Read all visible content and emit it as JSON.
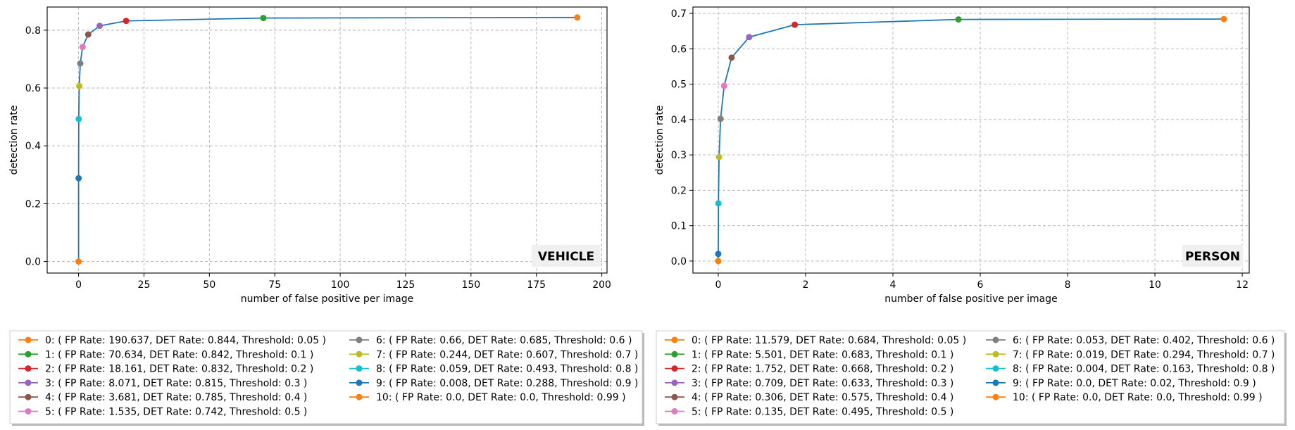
{
  "chart_data": [
    {
      "type": "line",
      "label": "VEHICLE",
      "xlabel": "number of false positive per image",
      "ylabel": "detection rate",
      "xlim": [
        -12,
        202
      ],
      "ylim": [
        -0.04,
        0.88
      ],
      "xticks": [
        0,
        25,
        50,
        75,
        100,
        125,
        150,
        175,
        200
      ],
      "yticks": [
        0.0,
        0.2,
        0.4,
        0.6,
        0.8
      ],
      "ytick_decimals": 1,
      "line_color": "#1f77b4",
      "grid": true,
      "legend_position": "below",
      "points": [
        {
          "fp": 190.637,
          "det": 0.844,
          "threshold": 0.05,
          "legend": "0: ( FP Rate: 190.637, DET Rate: 0.844, Threshold: 0.05 )"
        },
        {
          "fp": 70.634,
          "det": 0.842,
          "threshold": 0.1,
          "legend": "1: ( FP Rate: 70.634, DET Rate: 0.842, Threshold: 0.1 )"
        },
        {
          "fp": 18.161,
          "det": 0.832,
          "threshold": 0.2,
          "legend": "2: ( FP Rate: 18.161, DET Rate: 0.832, Threshold: 0.2 )"
        },
        {
          "fp": 8.071,
          "det": 0.815,
          "threshold": 0.3,
          "legend": "3: ( FP Rate: 8.071, DET Rate: 0.815, Threshold: 0.3 )"
        },
        {
          "fp": 3.681,
          "det": 0.785,
          "threshold": 0.4,
          "legend": "4: ( FP Rate: 3.681, DET Rate: 0.785, Threshold: 0.4 )"
        },
        {
          "fp": 1.535,
          "det": 0.742,
          "threshold": 0.5,
          "legend": "5: ( FP Rate: 1.535, DET Rate: 0.742, Threshold: 0.5 )"
        },
        {
          "fp": 0.66,
          "det": 0.685,
          "threshold": 0.6,
          "legend": "6: ( FP Rate: 0.66, DET Rate: 0.685, Threshold: 0.6 )"
        },
        {
          "fp": 0.244,
          "det": 0.607,
          "threshold": 0.7,
          "legend": "7: ( FP Rate: 0.244, DET Rate: 0.607, Threshold: 0.7 )"
        },
        {
          "fp": 0.059,
          "det": 0.493,
          "threshold": 0.8,
          "legend": "8: ( FP Rate: 0.059, DET Rate: 0.493, Threshold: 0.8 )"
        },
        {
          "fp": 0.008,
          "det": 0.288,
          "threshold": 0.9,
          "legend": "9: ( FP Rate: 0.008, DET Rate: 0.288, Threshold: 0.9 )"
        },
        {
          "fp": 0.0,
          "det": 0.0,
          "threshold": 0.99,
          "legend": "10: ( FP Rate: 0.0, DET Rate: 0.0, Threshold: 0.99 )"
        }
      ]
    },
    {
      "type": "line",
      "label": "PERSON",
      "xlabel": "number of false positive per image",
      "ylabel": "detection rate",
      "xlim": [
        -0.58,
        12.16
      ],
      "ylim": [
        -0.034,
        0.718
      ],
      "xticks": [
        0,
        2,
        4,
        6,
        8,
        10,
        12
      ],
      "yticks": [
        0.0,
        0.1,
        0.2,
        0.3,
        0.4,
        0.5,
        0.6,
        0.7
      ],
      "ytick_decimals": 1,
      "line_color": "#1f77b4",
      "grid": true,
      "legend_position": "below",
      "points": [
        {
          "fp": 11.579,
          "det": 0.684,
          "threshold": 0.05,
          "legend": "0: ( FP Rate: 11.579, DET Rate: 0.684, Threshold: 0.05 )"
        },
        {
          "fp": 5.501,
          "det": 0.683,
          "threshold": 0.1,
          "legend": "1: ( FP Rate: 5.501, DET Rate: 0.683, Threshold: 0.1 )"
        },
        {
          "fp": 1.752,
          "det": 0.668,
          "threshold": 0.2,
          "legend": "2: ( FP Rate: 1.752, DET Rate: 0.668, Threshold: 0.2 )"
        },
        {
          "fp": 0.709,
          "det": 0.633,
          "threshold": 0.3,
          "legend": "3: ( FP Rate: 0.709, DET Rate: 0.633, Threshold: 0.3 )"
        },
        {
          "fp": 0.306,
          "det": 0.575,
          "threshold": 0.4,
          "legend": "4: ( FP Rate: 0.306, DET Rate: 0.575, Threshold: 0.4 )"
        },
        {
          "fp": 0.135,
          "det": 0.495,
          "threshold": 0.5,
          "legend": "5: ( FP Rate: 0.135, DET Rate: 0.495, Threshold: 0.5 )"
        },
        {
          "fp": 0.053,
          "det": 0.402,
          "threshold": 0.6,
          "legend": "6: ( FP Rate: 0.053, DET Rate: 0.402, Threshold: 0.6 )"
        },
        {
          "fp": 0.019,
          "det": 0.294,
          "threshold": 0.7,
          "legend": "7: ( FP Rate: 0.019, DET Rate: 0.294, Threshold: 0.7 )"
        },
        {
          "fp": 0.004,
          "det": 0.163,
          "threshold": 0.8,
          "legend": "8: ( FP Rate: 0.004, DET Rate: 0.163, Threshold: 0.8 )"
        },
        {
          "fp": 0.0,
          "det": 0.02,
          "threshold": 0.9,
          "legend": "9: ( FP Rate: 0.0, DET Rate: 0.02, Threshold: 0.9 )"
        },
        {
          "fp": 0.0,
          "det": 0.0,
          "threshold": 0.99,
          "legend": "10: ( FP Rate: 0.0, DET Rate: 0.0, Threshold: 0.99 )"
        }
      ]
    }
  ],
  "marker_colors": [
    "#ff7f0e",
    "#2ca02c",
    "#d62728",
    "#9467bd",
    "#8c564b",
    "#e377c2",
    "#7f7f7f",
    "#bcbd22",
    "#17becf",
    "#1f77b4",
    "#ff7f0e"
  ]
}
